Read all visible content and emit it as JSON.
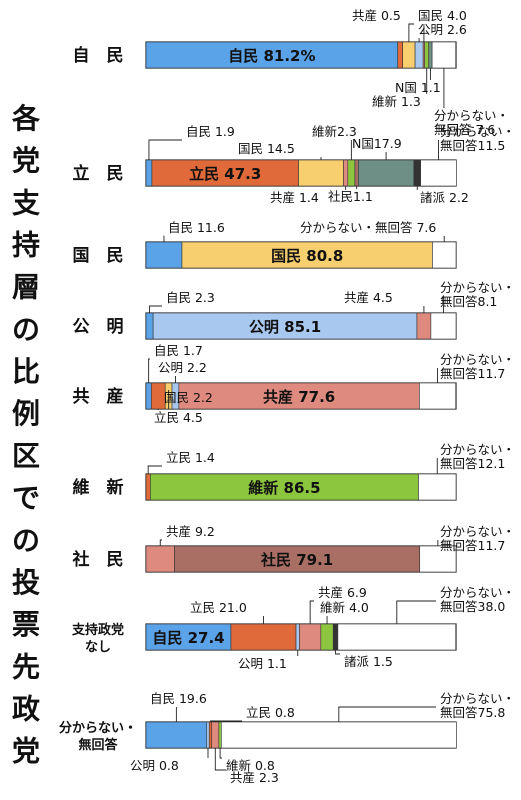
{
  "title": "各党支持層の比例区での投票先政党",
  "colors": {
    "自民": "#5ba3e8",
    "立民": "#e06a3a",
    "国民": "#f7cf6e",
    "公明": "#a9c8ef",
    "共産": "#df8a7e",
    "維新": "#8cc63f",
    "社民": "#a96e64",
    "N国": "#6e8f85",
    "諸派": "#333333",
    "分からない・無回答": "#ffffff"
  },
  "chart_data": {
    "type": "bar",
    "orientation": "horizontal",
    "stacked": true,
    "unit": "%",
    "title": "各党支持層の比例区での投票先政党",
    "categories": [
      "自　民",
      "立　民",
      "国　民",
      "公　明",
      "共　産",
      "維　新",
      "社　民",
      "支持政党なし",
      "分からない・無回答"
    ],
    "rows": [
      {
        "label": "自　民",
        "segments": [
          {
            "party": "自民",
            "value": 81.2,
            "text": "自民 81.2%",
            "inside": true
          },
          {
            "party": "立民",
            "value": 1.6,
            "text": "立民 1.6"
          },
          {
            "party": "国民",
            "value": 4.0,
            "text": "国民 4.0"
          },
          {
            "party": "公明",
            "value": 2.6,
            "text": "公明 2.6"
          },
          {
            "party": "共産",
            "value": 0.5,
            "text": "共産 0.5"
          },
          {
            "party": "維新",
            "value": 1.3,
            "text": "維新 1.3"
          },
          {
            "party": "N国",
            "value": 1.1,
            "text": "N国 1.1"
          },
          {
            "party": "分からない・無回答",
            "value": 7.6,
            "text": "分からない・\n無回答 7.6"
          }
        ]
      },
      {
        "label": "立　民",
        "segments": [
          {
            "party": "自民",
            "value": 1.9,
            "text": "自民 1.9"
          },
          {
            "party": "立民",
            "value": 47.3,
            "text": "立民 47.3",
            "inside": true
          },
          {
            "party": "国民",
            "value": 14.5,
            "text": "国民 14.5"
          },
          {
            "party": "共産",
            "value": 1.4,
            "text": "共産 1.4"
          },
          {
            "party": "維新",
            "value": 2.3,
            "text": "維新2.3"
          },
          {
            "party": "社民",
            "value": 1.1,
            "text": "社民1.1"
          },
          {
            "party": "N国",
            "value": 17.9,
            "text": "N国17.9"
          },
          {
            "party": "諸派",
            "value": 2.2,
            "text": "諸派 2.2"
          },
          {
            "party": "分からない・無回答",
            "value": 11.5,
            "text": "分からない・\n無回答11.5"
          }
        ]
      },
      {
        "label": "国　民",
        "segments": [
          {
            "party": "自民",
            "value": 11.6,
            "text": "自民 11.6"
          },
          {
            "party": "国民",
            "value": 80.8,
            "text": "国民 80.8",
            "inside": true
          },
          {
            "party": "分からない・無回答",
            "value": 7.6,
            "text": "分からない・無回答 7.6"
          }
        ]
      },
      {
        "label": "公　明",
        "segments": [
          {
            "party": "自民",
            "value": 2.3,
            "text": "自民 2.3"
          },
          {
            "party": "公明",
            "value": 85.1,
            "text": "公明 85.1",
            "inside": true
          },
          {
            "party": "共産",
            "value": 4.5,
            "text": "共産 4.5"
          },
          {
            "party": "分からない・無回答",
            "value": 8.1,
            "text": "分からない・\n無回答8.1"
          }
        ]
      },
      {
        "label": "共　産",
        "segments": [
          {
            "party": "自民",
            "value": 1.7,
            "text": "自民 1.7"
          },
          {
            "party": "立民",
            "value": 4.5,
            "text": "立民 4.5"
          },
          {
            "party": "国民",
            "value": 2.2,
            "text": "国民 2.2"
          },
          {
            "party": "公明",
            "value": 2.2,
            "text": "公明 2.2"
          },
          {
            "party": "共産",
            "value": 77.6,
            "text": "共産 77.6",
            "inside": true
          },
          {
            "party": "分からない・無回答",
            "value": 11.7,
            "text": "分からない・\n無回答11.7"
          }
        ]
      },
      {
        "label": "維　新",
        "segments": [
          {
            "party": "立民",
            "value": 1.4,
            "text": "立民 1.4"
          },
          {
            "party": "維新",
            "value": 86.5,
            "text": "維新 86.5",
            "inside": true
          },
          {
            "party": "分からない・無回答",
            "value": 12.1,
            "text": "分からない・\n無回答12.1"
          }
        ]
      },
      {
        "label": "社　民",
        "segments": [
          {
            "party": "共産",
            "value": 9.2,
            "text": "共産 9.2"
          },
          {
            "party": "社民",
            "value": 79.1,
            "text": "社民 79.1",
            "inside": true
          },
          {
            "party": "分からない・無回答",
            "value": 11.7,
            "text": "分からない・\n無回答11.7"
          }
        ]
      },
      {
        "label": "支持政党\nなし",
        "segments": [
          {
            "party": "自民",
            "value": 27.4,
            "text": "自民 27.4",
            "inside": true
          },
          {
            "party": "立民",
            "value": 21.0,
            "text": "立民 21.0"
          },
          {
            "party": "公明",
            "value": 1.1,
            "text": "公明 1.1"
          },
          {
            "party": "共産",
            "value": 6.9,
            "text": "共産 6.9"
          },
          {
            "party": "維新",
            "value": 4.0,
            "text": "維新 4.0"
          },
          {
            "party": "諸派",
            "value": 1.5,
            "text": "諸派 1.5"
          },
          {
            "party": "分からない・無回答",
            "value": 38.0,
            "text": "分からない・\n無回答38.0"
          }
        ]
      },
      {
        "label": "分からない・\n無回答",
        "segments": [
          {
            "party": "自民",
            "value": 19.6,
            "text": "自民 19.6"
          },
          {
            "party": "公明",
            "value": 0.8,
            "text": "公明 0.8"
          },
          {
            "party": "立民",
            "value": 0.8,
            "text": "立民 0.8"
          },
          {
            "party": "共産",
            "value": 2.3,
            "text": "共産 2.3"
          },
          {
            "party": "維新",
            "value": 0.8,
            "text": "維新 0.8"
          },
          {
            "party": "分からない・無回答",
            "value": 75.8,
            "text": "分からない・\n無回答75.8"
          }
        ]
      }
    ]
  }
}
